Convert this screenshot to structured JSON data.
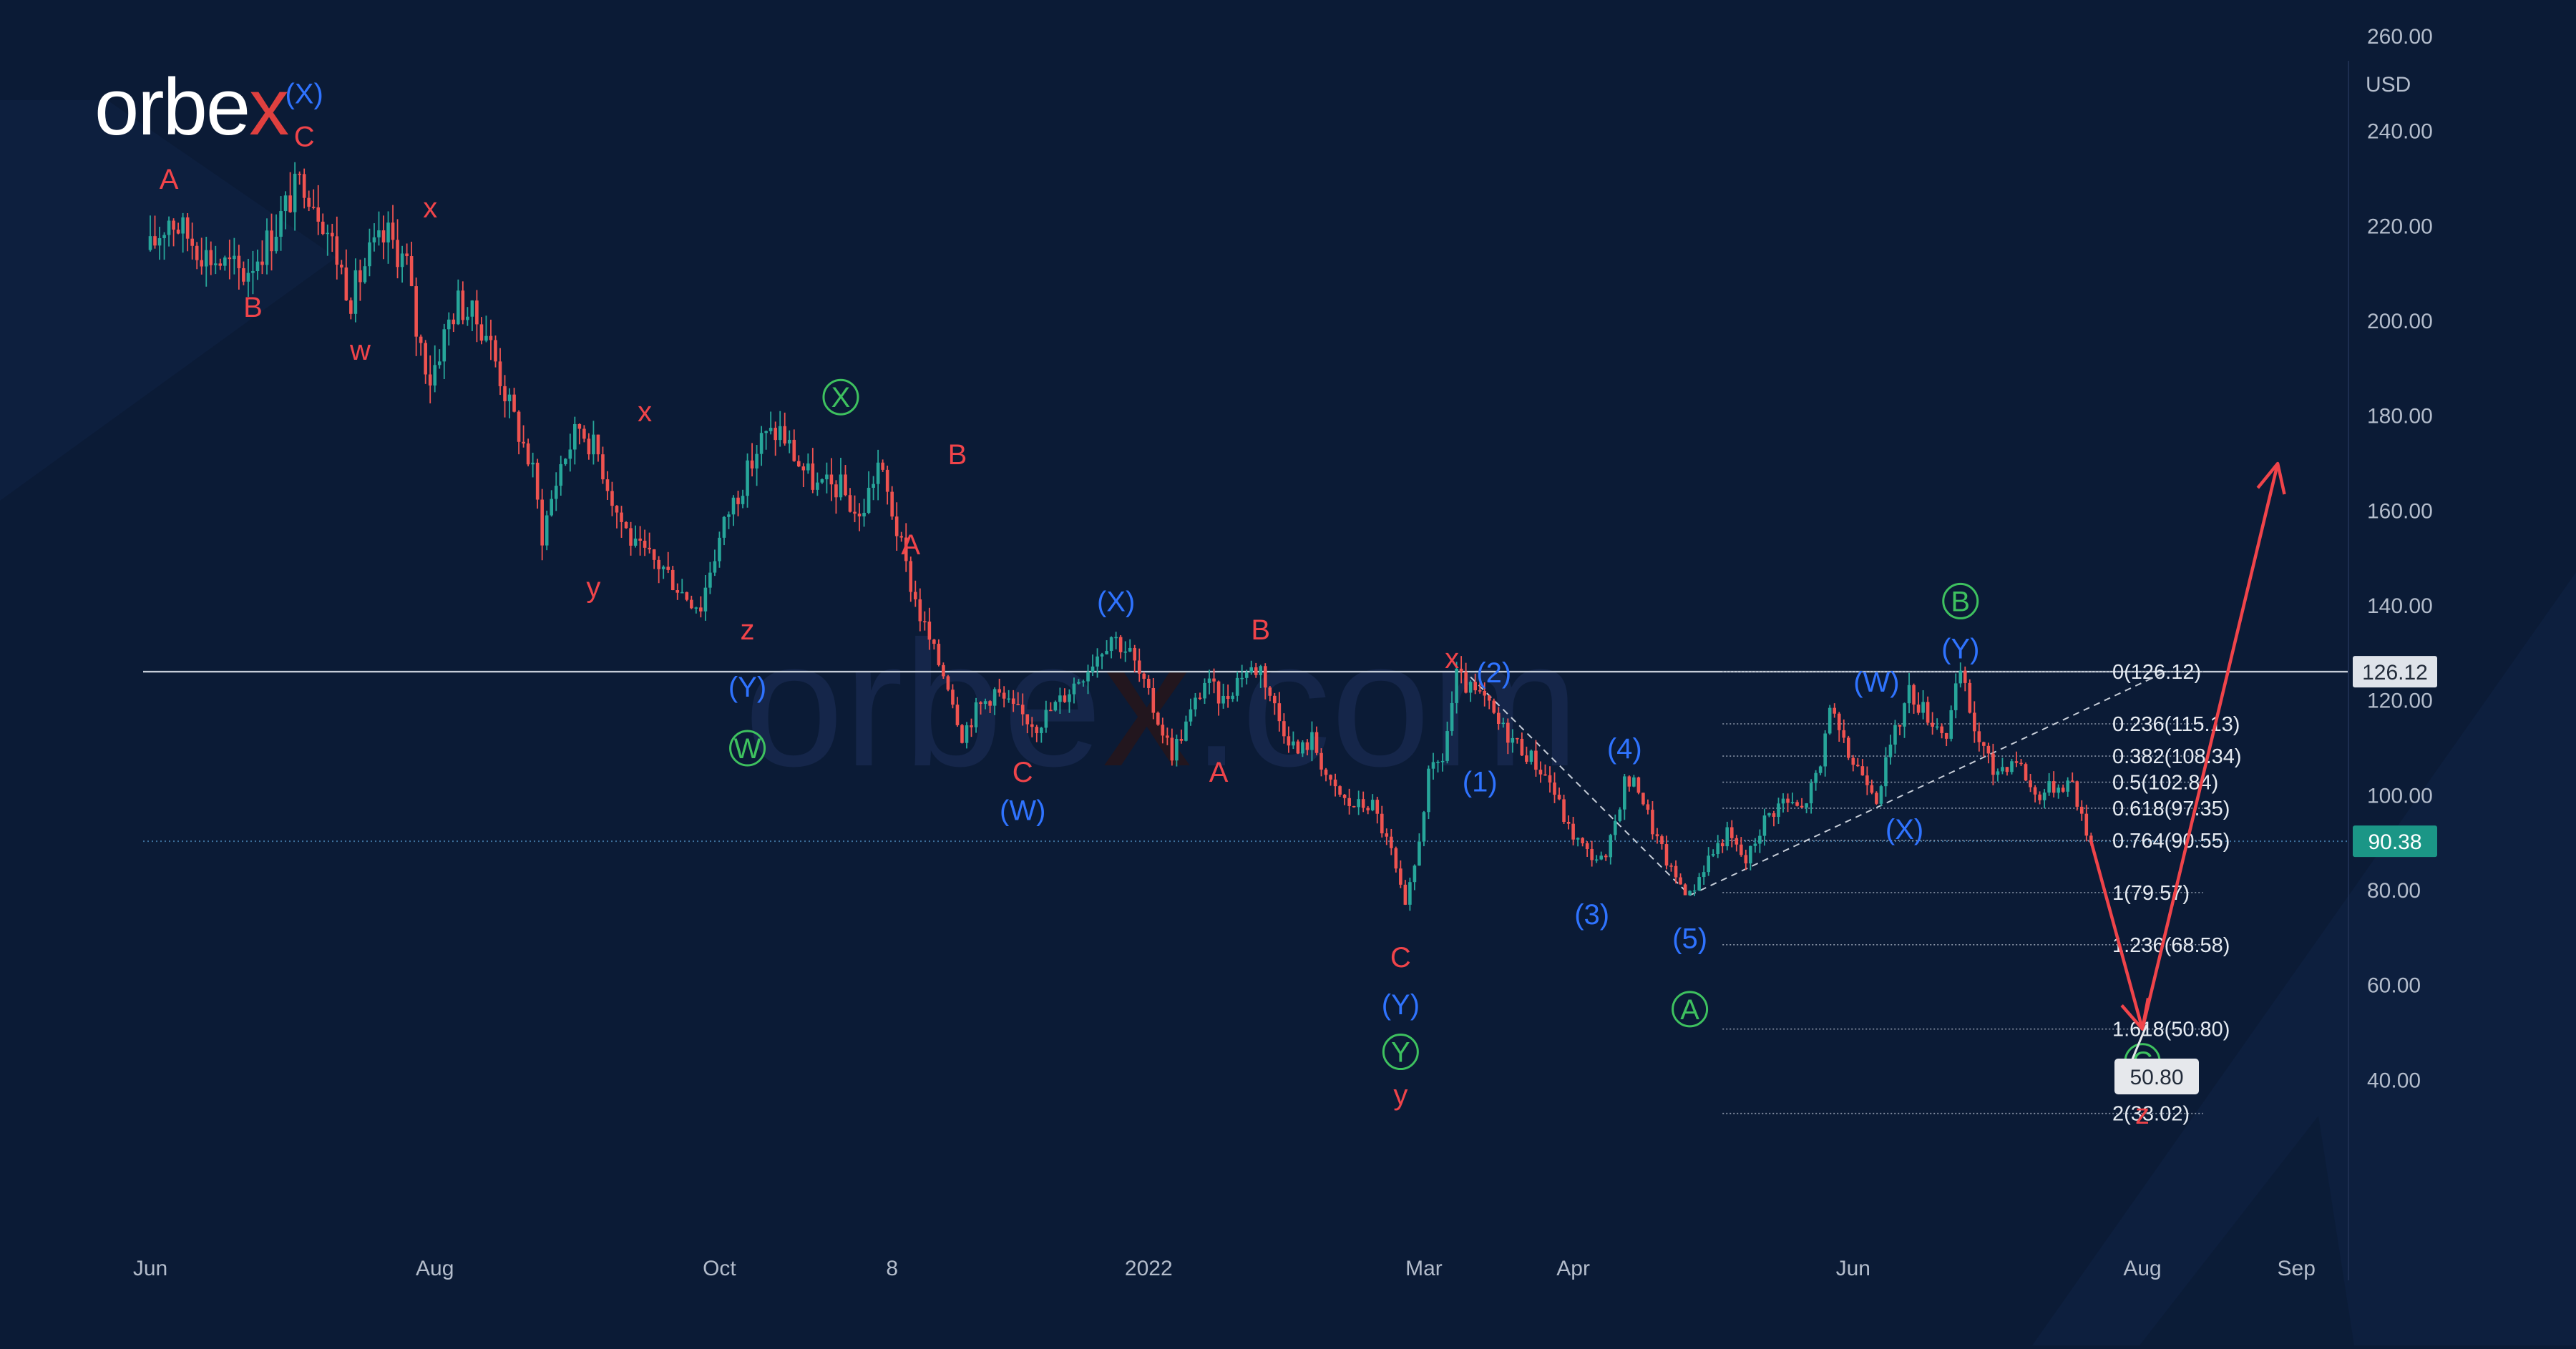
{
  "brand": {
    "name_left": "orbe",
    "name_x": "x",
    "accent": "#e0403f"
  },
  "watermark": {
    "left": "orbe",
    "x": "x",
    "right": ".com"
  },
  "colors": {
    "background": "#0b1b36",
    "candle_up": "#27a69a",
    "candle_down": "#ef5350",
    "wave_red": "#f0444a",
    "wave_blue": "#2f73ff",
    "wave_green": "#3ec15f",
    "projection": "#f0444a"
  },
  "chart_data": {
    "type": "candlestick",
    "currency": "USD",
    "ylim": [
      23,
      272
    ],
    "yticks": [
      40,
      60,
      80,
      100,
      120,
      140,
      160,
      180,
      200,
      220,
      240,
      260
    ],
    "ytick_labels": [
      "40.00",
      "60.00",
      "80.00",
      "100.00",
      "120.00",
      "140.00",
      "160.00",
      "180.00",
      "200.00",
      "220.00",
      "240.00",
      "260.00"
    ],
    "xticks": [
      {
        "label": "Jun",
        "t": 0
      },
      {
        "label": "Aug",
        "t": 61
      },
      {
        "label": "Oct",
        "t": 122
      },
      {
        "label": "8",
        "t": 159
      },
      {
        "label": "2022",
        "t": 214
      },
      {
        "label": "Mar",
        "t": 273
      },
      {
        "label": "Apr",
        "t": 305
      },
      {
        "label": "Jun",
        "t": 365
      },
      {
        "label": "Aug",
        "t": 427
      },
      {
        "label": "Sep",
        "t": 460
      }
    ],
    "price_path": [
      [
        0,
        215
      ],
      [
        4,
        222
      ],
      [
        12,
        214
      ],
      [
        20,
        210
      ],
      [
        26,
        218
      ],
      [
        30,
        226
      ],
      [
        33,
        230
      ],
      [
        37,
        222
      ],
      [
        43,
        205
      ],
      [
        47,
        214
      ],
      [
        51,
        218
      ],
      [
        55,
        212
      ],
      [
        57,
        198
      ],
      [
        60,
        188
      ],
      [
        64,
        200
      ],
      [
        66,
        204
      ],
      [
        72,
        198
      ],
      [
        77,
        182
      ],
      [
        80,
        174
      ],
      [
        82,
        168
      ],
      [
        84,
        155
      ],
      [
        88,
        170
      ],
      [
        92,
        178
      ],
      [
        96,
        172
      ],
      [
        100,
        160
      ],
      [
        104,
        152
      ],
      [
        110,
        148
      ],
      [
        114,
        143
      ],
      [
        118,
        140
      ],
      [
        120,
        148
      ],
      [
        124,
        160
      ],
      [
        128,
        168
      ],
      [
        131,
        175
      ],
      [
        135,
        177
      ],
      [
        139,
        170
      ],
      [
        143,
        165
      ],
      [
        148,
        165
      ],
      [
        152,
        158
      ],
      [
        156,
        170
      ],
      [
        159,
        160
      ],
      [
        162,
        148
      ],
      [
        165,
        138
      ],
      [
        168,
        130
      ],
      [
        171,
        124
      ],
      [
        174,
        113
      ],
      [
        177,
        118
      ],
      [
        181,
        122
      ],
      [
        185,
        118
      ],
      [
        190,
        115
      ],
      [
        195,
        120
      ],
      [
        200,
        126
      ],
      [
        206,
        134
      ],
      [
        210,
        130
      ],
      [
        216,
        116
      ],
      [
        219,
        109
      ],
      [
        222,
        115
      ],
      [
        226,
        124
      ],
      [
        230,
        120
      ],
      [
        234,
        126
      ],
      [
        238,
        127
      ],
      [
        242,
        116
      ],
      [
        246,
        109
      ],
      [
        249,
        112
      ],
      [
        253,
        102
      ],
      [
        257,
        98
      ],
      [
        262,
        98
      ],
      [
        266,
        88
      ],
      [
        269,
        76
      ],
      [
        271,
        85
      ],
      [
        274,
        104
      ],
      [
        277,
        108
      ],
      [
        280,
        125
      ],
      [
        283,
        122
      ],
      [
        286,
        120
      ],
      [
        289,
        115
      ],
      [
        292,
        112
      ],
      [
        296,
        108
      ],
      [
        300,
        103
      ],
      [
        304,
        93
      ],
      [
        308,
        88
      ],
      [
        312,
        86
      ],
      [
        316,
        103
      ],
      [
        319,
        102
      ],
      [
        322,
        93
      ],
      [
        326,
        84
      ],
      [
        330,
        79
      ],
      [
        334,
        87
      ],
      [
        338,
        92
      ],
      [
        342,
        86
      ],
      [
        346,
        95
      ],
      [
        350,
        99
      ],
      [
        354,
        97
      ],
      [
        358,
        106
      ],
      [
        360,
        120
      ],
      [
        362,
        112
      ],
      [
        365,
        107
      ],
      [
        368,
        104
      ],
      [
        370,
        100
      ],
      [
        373,
        110
      ],
      [
        377,
        122
      ],
      [
        381,
        117
      ],
      [
        385,
        113
      ],
      [
        388,
        126
      ],
      [
        391,
        114
      ],
      [
        395,
        105
      ],
      [
        400,
        108
      ],
      [
        404,
        100
      ],
      [
        408,
        102
      ],
      [
        412,
        103
      ],
      [
        414,
        95
      ],
      [
        416,
        90.38
      ]
    ],
    "last_price": "90.38",
    "high_label": "126.12",
    "target_label": "50.80",
    "hline": 126.12,
    "dotted_line": 90.38,
    "fibonacci": {
      "x_start": 337,
      "x_end": 440,
      "levels": [
        {
          "label": "0(126.12)",
          "value": 126.12
        },
        {
          "label": "0.236(115.13)",
          "value": 115.13
        },
        {
          "label": "0.382(108.34)",
          "value": 108.34
        },
        {
          "label": "0.5(102.84)",
          "value": 102.84
        },
        {
          "label": "0.618(97.35)",
          "value": 97.35
        },
        {
          "label": "0.764(90.55)",
          "value": 90.55
        },
        {
          "label": "1(79.57)",
          "value": 79.57
        },
        {
          "label": "1.236(68.58)",
          "value": 68.58
        },
        {
          "label": "1.618(50.80)",
          "value": 50.8
        },
        {
          "label": "2(33.02)",
          "value": 33.02
        }
      ]
    },
    "trend_lines": [
      [
        [
          283,
          125
        ],
        [
          330,
          79
        ]
      ],
      [
        [
          330,
          79
        ],
        [
          432,
          126.12
        ]
      ]
    ],
    "projection": [
      [
        416,
        90.38
      ],
      [
        427,
        50.8
      ],
      [
        456,
        170
      ]
    ],
    "wave_labels": [
      {
        "text": "A",
        "t": 4,
        "v": 230,
        "color": "red"
      },
      {
        "text": "B",
        "t": 22,
        "v": 203,
        "color": "red"
      },
      {
        "text": "C",
        "t": 33,
        "v": 239,
        "color": "red"
      },
      {
        "text": "(X)",
        "t": 33,
        "v": 248,
        "color": "blue"
      },
      {
        "text": "x",
        "t": 60,
        "v": 224,
        "color": "red"
      },
      {
        "text": "w",
        "t": 45,
        "v": 194,
        "color": "red"
      },
      {
        "text": "x",
        "t": 106,
        "v": 181,
        "color": "red"
      },
      {
        "text": "X",
        "t": 148,
        "v": 184,
        "color": "green",
        "circle": true
      },
      {
        "text": "B",
        "t": 173,
        "v": 172,
        "color": "red"
      },
      {
        "text": "A",
        "t": 163,
        "v": 153,
        "color": "red"
      },
      {
        "text": "y",
        "t": 95,
        "v": 144,
        "color": "red"
      },
      {
        "text": "z",
        "t": 128,
        "v": 135,
        "color": "red"
      },
      {
        "text": "(Y)",
        "t": 128,
        "v": 123,
        "color": "blue"
      },
      {
        "text": "W",
        "t": 128,
        "v": 110,
        "color": "green",
        "circle": true
      },
      {
        "text": "(X)",
        "t": 207,
        "v": 141,
        "color": "blue"
      },
      {
        "text": "B",
        "t": 238,
        "v": 135,
        "color": "red"
      },
      {
        "text": "C",
        "t": 187,
        "v": 105,
        "color": "red"
      },
      {
        "text": "(W)",
        "t": 187,
        "v": 97,
        "color": "blue"
      },
      {
        "text": "A",
        "t": 229,
        "v": 105,
        "color": "red"
      },
      {
        "text": "x",
        "t": 279,
        "v": 129,
        "color": "red"
      },
      {
        "text": "(2)",
        "t": 288,
        "v": 126,
        "color": "blue"
      },
      {
        "text": "(1)",
        "t": 285,
        "v": 103,
        "color": "blue"
      },
      {
        "text": "C",
        "t": 268,
        "v": 66,
        "color": "red"
      },
      {
        "text": "(Y)",
        "t": 268,
        "v": 56,
        "color": "blue"
      },
      {
        "text": "Y",
        "t": 268,
        "v": 46,
        "color": "green",
        "circle": true
      },
      {
        "text": "y",
        "t": 268,
        "v": 37,
        "color": "red"
      },
      {
        "text": "(4)",
        "t": 316,
        "v": 110,
        "color": "blue"
      },
      {
        "text": "(3)",
        "t": 309,
        "v": 75,
        "color": "blue"
      },
      {
        "text": "(5)",
        "t": 330,
        "v": 70,
        "color": "blue"
      },
      {
        "text": "A",
        "t": 330,
        "v": 55,
        "color": "green",
        "circle": true
      },
      {
        "text": "(W)",
        "t": 370,
        "v": 124,
        "color": "blue"
      },
      {
        "text": "(X)",
        "t": 376,
        "v": 93,
        "color": "blue"
      },
      {
        "text": "B",
        "t": 388,
        "v": 141,
        "color": "green",
        "circle": true
      },
      {
        "text": "(Y)",
        "t": 388,
        "v": 131,
        "color": "blue"
      },
      {
        "text": "C",
        "t": 427,
        "v": 44,
        "color": "green",
        "circle": true
      },
      {
        "text": "z",
        "t": 427,
        "v": 33,
        "color": "red"
      }
    ]
  }
}
